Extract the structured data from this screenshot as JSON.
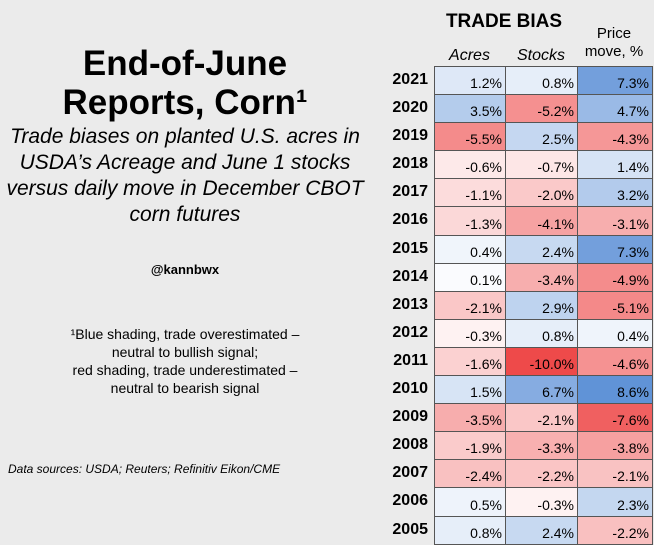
{
  "title_lines": [
    "End-of-June",
    "Reports, Corn¹"
  ],
  "subtitle": "Trade biases on planted U.S. acres in USDA’s Acreage and June 1 stocks versus daily move in December CBOT corn futures",
  "handle": "@kannbwx",
  "footnote_lines": [
    "¹Blue shading, trade overestimated –",
    "neutral to bullish signal;",
    "red shading, trade underestimated –",
    "neutral to bearish signal"
  ],
  "sources": "Data sources: USDA; Reuters; Refinitiv Eikon/CME",
  "colors": {
    "background": "#ebebeb",
    "blue": "#5b8fd6",
    "red": "#ee4a4a"
  },
  "chart_data": {
    "type": "table",
    "title": "TRADE BIAS",
    "columns": [
      "Acres",
      "Stocks",
      "Price move, %"
    ],
    "price_header_lines": [
      "Price",
      "move, %"
    ],
    "categories": [
      "2021",
      "2020",
      "2019",
      "2018",
      "2017",
      "2016",
      "2015",
      "2014",
      "2013",
      "2012",
      "2011",
      "2010",
      "2009",
      "2008",
      "2007",
      "2006",
      "2005"
    ],
    "series": [
      {
        "name": "Acres",
        "values": [
          1.2,
          3.5,
          -5.5,
          -0.6,
          -1.1,
          -1.3,
          0.4,
          0.1,
          -2.1,
          -0.3,
          -1.6,
          1.5,
          -3.5,
          -1.9,
          -2.4,
          0.5,
          0.8
        ],
        "max_abs": 10
      },
      {
        "name": "Stocks",
        "values": [
          0.8,
          -5.2,
          2.5,
          -0.7,
          -2.0,
          -4.1,
          2.4,
          -3.4,
          2.9,
          0.8,
          -10.0,
          6.7,
          -2.1,
          -3.3,
          -2.2,
          -0.3,
          2.4
        ],
        "max_abs": 10
      },
      {
        "name": "Price move, %",
        "values": [
          7.3,
          4.7,
          -4.3,
          1.4,
          3.2,
          -3.1,
          7.3,
          -4.9,
          -5.1,
          0.4,
          -4.6,
          8.6,
          -7.6,
          -3.8,
          -2.1,
          2.3,
          -2.2
        ],
        "max_abs": 9
      }
    ]
  }
}
